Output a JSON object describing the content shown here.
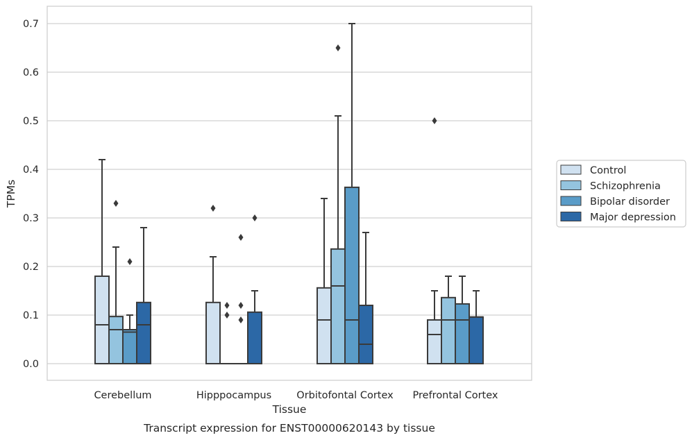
{
  "chart_data": {
    "type": "box",
    "caption": "Transcript expression for ENST00000620143 by tissue",
    "xlabel": "Tissue",
    "ylabel": "TPMs",
    "ylim": [
      -0.035,
      0.735
    ],
    "yticks": [
      "0.0",
      "0.1",
      "0.2",
      "0.3",
      "0.4",
      "0.5",
      "0.6",
      "0.7"
    ],
    "grid": "horizontal",
    "legend_position": "right-outside",
    "categories": [
      "Cerebellum",
      "Hipppocampus",
      "Orbitofontal Cortex",
      "Prefrontal Cortex"
    ],
    "series": [
      {
        "name": "Control",
        "color": "#d0e1f0",
        "boxes": [
          {
            "q1": 0.0,
            "median": 0.08,
            "q3": 0.18,
            "whisker_low": 0.0,
            "whisker_high": 0.42,
            "outliers": []
          },
          {
            "q1": 0.0,
            "median": 0.0,
            "q3": 0.126,
            "whisker_low": 0.0,
            "whisker_high": 0.22,
            "outliers": [
              0.32
            ]
          },
          {
            "q1": 0.0,
            "median": 0.09,
            "q3": 0.156,
            "whisker_low": 0.0,
            "whisker_high": 0.34,
            "outliers": []
          },
          {
            "q1": 0.0,
            "median": 0.06,
            "q3": 0.09,
            "whisker_low": 0.0,
            "whisker_high": 0.15,
            "outliers": [
              0.5
            ]
          }
        ]
      },
      {
        "name": "Schizophrenia",
        "color": "#94c4df",
        "boxes": [
          {
            "q1": 0.0,
            "median": 0.07,
            "q3": 0.097,
            "whisker_low": 0.0,
            "whisker_high": 0.24,
            "outliers": [
              0.33
            ]
          },
          {
            "q1": 0.0,
            "median": 0.0,
            "q3": 0.0,
            "whisker_low": 0.0,
            "whisker_high": 0.0,
            "outliers": [
              0.1,
              0.12
            ]
          },
          {
            "q1": 0.0,
            "median": 0.16,
            "q3": 0.236,
            "whisker_low": 0.0,
            "whisker_high": 0.51,
            "outliers": [
              0.65
            ]
          },
          {
            "q1": 0.0,
            "median": 0.09,
            "q3": 0.136,
            "whisker_low": 0.0,
            "whisker_high": 0.18,
            "outliers": []
          }
        ]
      },
      {
        "name": "Bipolar disorder",
        "color": "#5a9cc8",
        "boxes": [
          {
            "q1": 0.0,
            "median": 0.065,
            "q3": 0.07,
            "whisker_low": 0.0,
            "whisker_high": 0.1,
            "outliers": [
              0.21
            ]
          },
          {
            "q1": 0.0,
            "median": 0.0,
            "q3": 0.0,
            "whisker_low": 0.0,
            "whisker_high": 0.0,
            "outliers": [
              0.26,
              0.12,
              0.09
            ]
          },
          {
            "q1": 0.0,
            "median": 0.09,
            "q3": 0.363,
            "whisker_low": 0.0,
            "whisker_high": 0.7,
            "outliers": []
          },
          {
            "q1": 0.0,
            "median": 0.09,
            "q3": 0.123,
            "whisker_low": 0.0,
            "whisker_high": 0.18,
            "outliers": []
          }
        ]
      },
      {
        "name": "Major depression",
        "color": "#2c68a6",
        "boxes": [
          {
            "q1": 0.0,
            "median": 0.08,
            "q3": 0.126,
            "whisker_low": 0.0,
            "whisker_high": 0.28,
            "outliers": []
          },
          {
            "q1": 0.0,
            "median": 0.0,
            "q3": 0.106,
            "whisker_low": 0.0,
            "whisker_high": 0.15,
            "outliers": [
              0.3
            ]
          },
          {
            "q1": 0.0,
            "median": 0.04,
            "q3": 0.12,
            "whisker_low": 0.0,
            "whisker_high": 0.27,
            "outliers": []
          },
          {
            "q1": 0.0,
            "median": 0.096,
            "q3": 0.096,
            "whisker_low": 0.0,
            "whisker_high": 0.15,
            "outliers": []
          }
        ]
      }
    ]
  }
}
